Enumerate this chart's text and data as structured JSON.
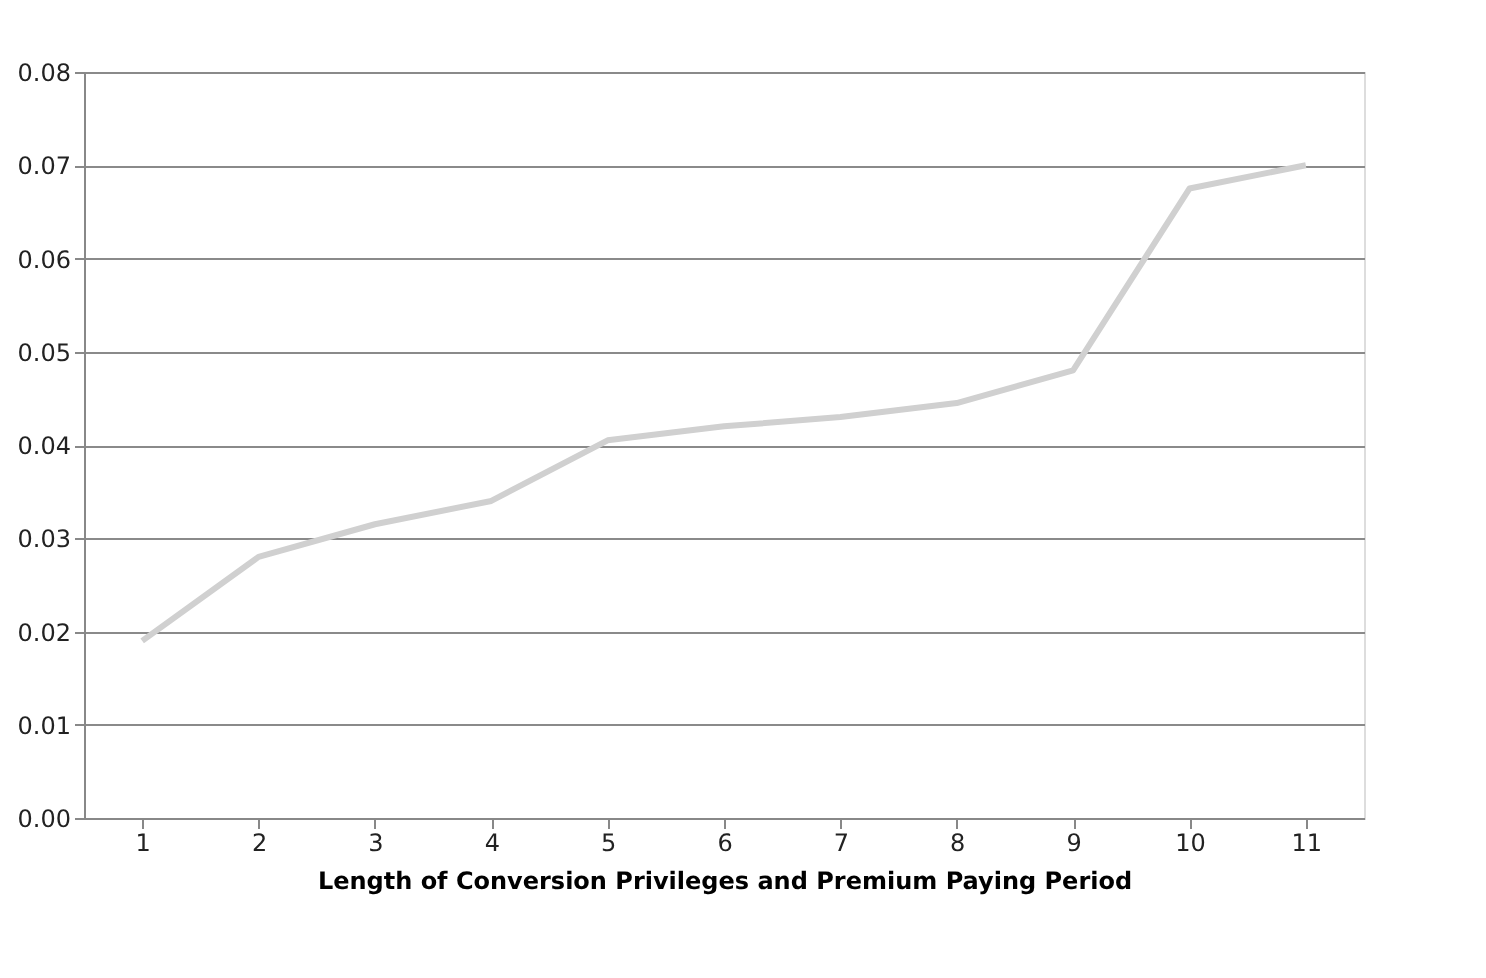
{
  "chart_data": {
    "type": "line",
    "xlabel": "Length of Conversion Privileges and Premium Paying Period",
    "categories": [
      "1",
      "2",
      "3",
      "4",
      "5",
      "6",
      "7",
      "8",
      "9",
      "10",
      "11"
    ],
    "series": [
      {
        "color": "#d0d0d0",
        "values": [
          0.019,
          0.028,
          0.0315,
          0.034,
          0.0405,
          0.042,
          0.043,
          0.0445,
          0.048,
          0.0675,
          0.07
        ]
      }
    ],
    "ylim": [
      0,
      0.08
    ],
    "yticks": [
      {
        "value": 0,
        "label": "0.00"
      },
      {
        "value": 0.01,
        "label": "0.01"
      },
      {
        "value": 0.02,
        "label": "0.02"
      },
      {
        "value": 0.03,
        "label": "0.03"
      },
      {
        "value": 0.04,
        "label": "0.04"
      },
      {
        "value": 0.05,
        "label": "0.05"
      },
      {
        "value": 0.06,
        "label": "0.06"
      },
      {
        "value": 0.07,
        "label": "0.07"
      },
      {
        "value": 0.08,
        "label": "0.08"
      }
    ],
    "grid": "y",
    "legend": false,
    "marker": "none",
    "line_style": "solid"
  }
}
